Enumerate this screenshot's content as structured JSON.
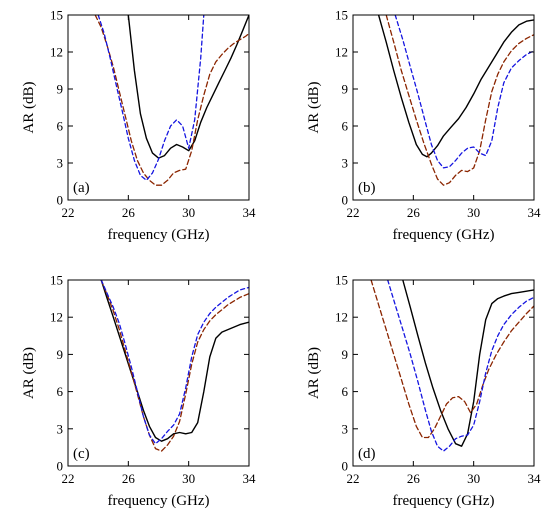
{
  "colors": {
    "solid": "#000000",
    "dash_brown": "#8B2500",
    "dash_blue": "#1515E0",
    "axis": "#000000",
    "background": "#ffffff"
  },
  "chart_data": [
    {
      "type": "line",
      "panel_label": "(a)",
      "xlabel": "frequency (GHz)",
      "ylabel": "AR (dB)",
      "xlim": [
        22,
        34
      ],
      "ylim": [
        0,
        15
      ],
      "xticks": [
        22,
        26,
        30,
        34
      ],
      "yticks": [
        0,
        3,
        6,
        9,
        12,
        15
      ],
      "grid": false,
      "series": [
        {
          "style": "solid",
          "x": [
            26,
            26.4,
            26.8,
            27.2,
            27.6,
            28,
            28.4,
            28.8,
            29.2,
            29.6,
            30,
            30.4,
            30.8,
            31.2,
            31.6,
            32,
            32.4,
            32.8,
            33.2,
            33.6,
            34
          ],
          "y": [
            15,
            10.5,
            7,
            5,
            3.8,
            3.4,
            3.6,
            4.2,
            4.5,
            4.3,
            4.0,
            4.8,
            6.3,
            7.5,
            8.5,
            9.5,
            10.5,
            11.5,
            12.6,
            13.8,
            15
          ]
        },
        {
          "style": "dash_brown",
          "x": [
            23.8,
            24.2,
            24.6,
            25,
            25.4,
            25.8,
            26.2,
            26.6,
            27,
            27.4,
            27.8,
            28.2,
            28.6,
            29,
            29.4,
            29.8,
            30.2,
            30.6,
            31,
            31.4,
            31.8,
            32.2,
            32.6,
            33,
            33.4,
            33.8,
            34
          ],
          "y": [
            15,
            14,
            12.5,
            10.8,
            8.8,
            6.8,
            4.8,
            3.2,
            2.2,
            1.6,
            1.2,
            1.2,
            1.6,
            2.2,
            2.4,
            2.5,
            4.0,
            6.5,
            8.5,
            10.2,
            11.2,
            11.8,
            12.3,
            12.7,
            13.0,
            13.3,
            13.5
          ]
        },
        {
          "style": "dash_blue",
          "x": [
            24,
            24.4,
            24.8,
            25.2,
            25.6,
            26,
            26.4,
            26.8,
            27.2,
            27.6,
            28,
            28.4,
            28.8,
            29.2,
            29.6,
            30,
            30.4,
            30.8,
            31
          ],
          "y": [
            15,
            13.5,
            11.5,
            9.3,
            7.2,
            5.0,
            3.2,
            2.0,
            1.6,
            2.2,
            3.3,
            4.8,
            6.0,
            6.5,
            6.0,
            4.2,
            6.5,
            11.5,
            15
          ]
        }
      ]
    },
    {
      "type": "line",
      "panel_label": "(b)",
      "xlabel": "frequency (GHz)",
      "ylabel": "AR (dB)",
      "xlim": [
        22,
        34
      ],
      "ylim": [
        0,
        15
      ],
      "xticks": [
        22,
        26,
        30,
        34
      ],
      "yticks": [
        0,
        3,
        6,
        9,
        12,
        15
      ],
      "grid": false,
      "series": [
        {
          "style": "solid",
          "x": [
            23.7,
            24.2,
            24.7,
            25.2,
            25.7,
            26.2,
            26.6,
            26.9,
            27.2,
            27.6,
            28,
            28.5,
            29,
            29.5,
            30,
            30.5,
            31,
            31.5,
            32,
            32.5,
            33,
            33.5,
            34
          ],
          "y": [
            15,
            12.8,
            10.5,
            8.3,
            6.3,
            4.5,
            3.7,
            3.5,
            3.8,
            4.4,
            5.2,
            5.9,
            6.6,
            7.5,
            8.6,
            9.8,
            10.8,
            11.8,
            12.8,
            13.6,
            14.2,
            14.5,
            14.6
          ]
        },
        {
          "style": "dash_brown",
          "x": [
            24.2,
            24.7,
            25.2,
            25.7,
            26.2,
            26.7,
            27.2,
            27.6,
            28,
            28.4,
            28.8,
            29.2,
            29.6,
            30,
            30.4,
            30.8,
            31.2,
            31.6,
            32,
            32.5,
            33,
            33.5,
            34
          ],
          "y": [
            15,
            12.8,
            10.5,
            8.5,
            6.5,
            4.6,
            2.9,
            1.7,
            1.2,
            1.4,
            2.0,
            2.4,
            2.3,
            2.6,
            4.0,
            6.5,
            8.8,
            10.2,
            11.2,
            12.1,
            12.7,
            13.1,
            13.4
          ]
        },
        {
          "style": "dash_blue",
          "x": [
            24.8,
            25.3,
            25.8,
            26.3,
            26.8,
            27.2,
            27.6,
            28,
            28.4,
            28.8,
            29.2,
            29.6,
            30,
            30.4,
            30.8,
            31.2,
            31.6,
            32,
            32.5,
            33,
            33.5,
            34
          ],
          "y": [
            15,
            13.0,
            10.8,
            8.6,
            6.3,
            4.5,
            3.2,
            2.6,
            2.7,
            3.2,
            3.8,
            4.2,
            4.3,
            3.8,
            3.6,
            4.8,
            7.5,
            9.5,
            10.7,
            11.3,
            11.8,
            12.1
          ]
        }
      ]
    },
    {
      "type": "line",
      "panel_label": "(c)",
      "xlabel": "frequency (GHz)",
      "ylabel": "AR (dB)",
      "xlim": [
        22,
        34
      ],
      "ylim": [
        0,
        15
      ],
      "xticks": [
        22,
        26,
        30,
        34
      ],
      "yticks": [
        0,
        3,
        6,
        9,
        12,
        15
      ],
      "grid": false,
      "series": [
        {
          "style": "solid",
          "x": [
            24.2,
            24.6,
            25,
            25.4,
            25.8,
            26.2,
            26.6,
            27,
            27.4,
            27.8,
            28.2,
            28.6,
            29,
            29.4,
            29.8,
            30.2,
            30.6,
            31,
            31.4,
            31.8,
            32.2,
            32.6,
            33,
            33.4,
            34
          ],
          "y": [
            15,
            13.5,
            12.0,
            10.5,
            9.0,
            7.5,
            6.0,
            4.5,
            3.2,
            2.3,
            2.0,
            2.2,
            2.6,
            2.7,
            2.6,
            2.7,
            3.5,
            6.0,
            8.8,
            10.3,
            10.8,
            11.0,
            11.2,
            11.4,
            11.6
          ]
        },
        {
          "style": "dash_brown",
          "x": [
            24.2,
            24.6,
            25,
            25.4,
            25.8,
            26.2,
            26.6,
            27,
            27.4,
            27.8,
            28.2,
            28.6,
            29,
            29.4,
            29.8,
            30.2,
            30.6,
            31,
            31.4,
            31.8,
            32.2,
            32.6,
            33,
            33.4,
            34
          ],
          "y": [
            15,
            13.8,
            12.5,
            11.0,
            9.3,
            7.6,
            5.8,
            4.0,
            2.5,
            1.4,
            1.2,
            1.7,
            2.4,
            3.6,
            5.8,
            8.2,
            10.0,
            11.0,
            11.7,
            12.2,
            12.6,
            13.0,
            13.3,
            13.6,
            13.9
          ]
        },
        {
          "style": "dash_blue",
          "x": [
            24.2,
            24.6,
            25,
            25.4,
            25.8,
            26.2,
            26.6,
            27,
            27.4,
            27.8,
            28.2,
            28.6,
            29,
            29.4,
            29.8,
            30.2,
            30.6,
            31,
            31.4,
            31.8,
            32.2,
            32.6,
            33,
            33.4,
            34
          ],
          "y": [
            15,
            13.9,
            12.8,
            11.5,
            9.8,
            8.0,
            6.0,
            4.0,
            2.5,
            1.8,
            2.2,
            2.8,
            3.3,
            4.2,
            6.3,
            8.8,
            10.6,
            11.6,
            12.3,
            12.8,
            13.2,
            13.6,
            13.9,
            14.2,
            14.4
          ]
        }
      ]
    },
    {
      "type": "line",
      "panel_label": "(d)",
      "xlabel": "frequency (GHz)",
      "ylabel": "AR (dB)",
      "xlim": [
        22,
        34
      ],
      "ylim": [
        0,
        15
      ],
      "xticks": [
        22,
        26,
        30,
        34
      ],
      "yticks": [
        0,
        3,
        6,
        9,
        12,
        15
      ],
      "grid": false,
      "series": [
        {
          "style": "solid",
          "x": [
            25.3,
            25.8,
            26.3,
            26.8,
            27.3,
            27.8,
            28.3,
            28.8,
            29.2,
            29.6,
            30,
            30.4,
            30.8,
            31.2,
            31.6,
            32,
            32.5,
            33,
            33.5,
            34
          ],
          "y": [
            15,
            12.8,
            10.5,
            8.3,
            6.3,
            4.5,
            3.0,
            1.8,
            1.6,
            2.6,
            5.2,
            9.0,
            11.8,
            13.1,
            13.5,
            13.7,
            13.9,
            14.0,
            14.1,
            14.2
          ]
        },
        {
          "style": "dash_brown",
          "x": [
            23.2,
            23.7,
            24.2,
            24.7,
            25.2,
            25.7,
            26.2,
            26.6,
            27,
            27.4,
            27.8,
            28.2,
            28.6,
            29,
            29.4,
            29.8,
            30.2,
            30.6,
            31,
            31.5,
            32,
            32.5,
            33,
            33.5,
            34
          ],
          "y": [
            15,
            13.0,
            11.0,
            9.0,
            7.0,
            5.0,
            3.2,
            2.3,
            2.3,
            3.0,
            4.0,
            5.0,
            5.5,
            5.6,
            5.2,
            4.3,
            5.0,
            6.5,
            7.8,
            9.0,
            10.0,
            10.9,
            11.6,
            12.3,
            12.9
          ]
        },
        {
          "style": "dash_blue",
          "x": [
            24.3,
            24.8,
            25.3,
            25.8,
            26.3,
            26.8,
            27.2,
            27.6,
            28,
            28.4,
            28.8,
            29.2,
            29.6,
            30,
            30.4,
            30.8,
            31.2,
            31.6,
            32,
            32.5,
            33,
            33.5,
            34
          ],
          "y": [
            15,
            13.0,
            11.0,
            9.0,
            6.8,
            4.5,
            2.8,
            1.6,
            1.2,
            1.6,
            2.2,
            2.4,
            2.5,
            3.3,
            5.2,
            7.5,
            9.3,
            10.5,
            11.4,
            12.2,
            12.8,
            13.3,
            13.6
          ]
        }
      ]
    }
  ]
}
